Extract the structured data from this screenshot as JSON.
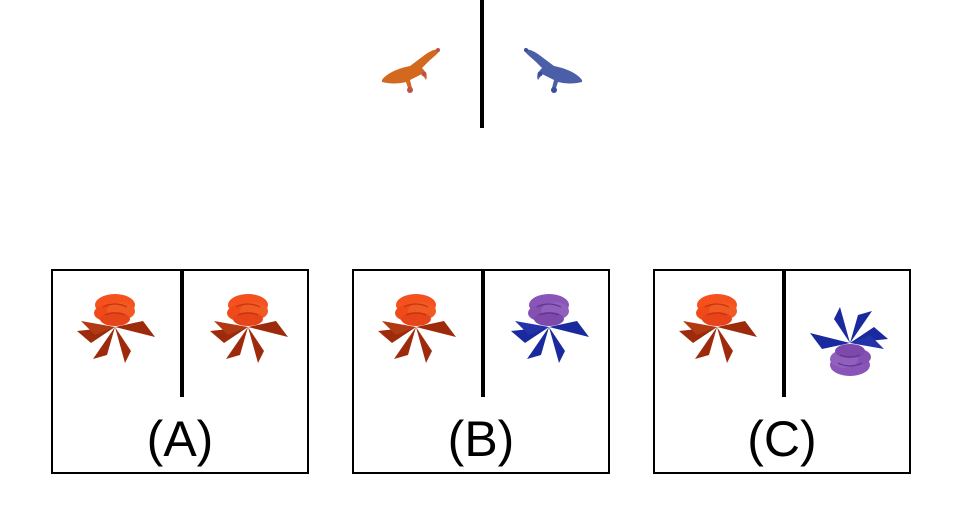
{
  "colors": {
    "orange_animal": "#d2691e",
    "blue_animal": "#4a5fa8",
    "red_petals": "#f4511e",
    "red_leaves": "#9e2a0c",
    "purple_petals": "#8a55b8",
    "blue_leaves": "#1a2a9e"
  },
  "stimulus": {
    "left_icon": "orange-lizard-icon",
    "right_icon": "blue-lizard-icon"
  },
  "options": [
    {
      "label": "(A)",
      "left_icon": "red-flower-icon",
      "right_icon": "red-flower-icon"
    },
    {
      "label": "(B)",
      "left_icon": "red-flower-icon",
      "right_icon": "blue-flower-icon"
    },
    {
      "label": "(C)",
      "left_icon": "red-flower-icon",
      "right_icon": "inverted-blue-flower-icon"
    }
  ]
}
